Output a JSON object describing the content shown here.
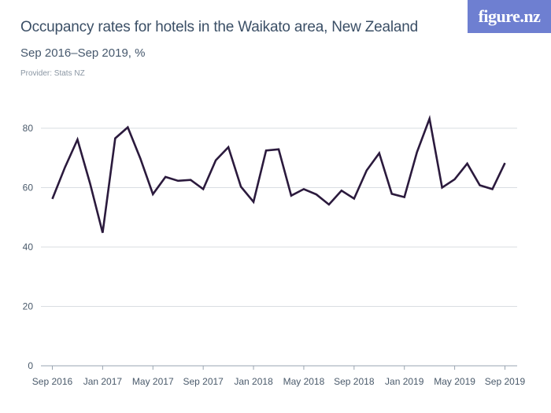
{
  "header": {
    "title": "Occupancy rates for hotels in the Waikato area, New Zealand",
    "subtitle": "Sep 2016–Sep 2019, %",
    "provider": "Provider: Stats NZ",
    "logo_text": "figure.nz"
  },
  "colors": {
    "line": "#2b1a3d",
    "grid": "#d9dde2",
    "logo_bg": "#6e7fd1"
  },
  "chart_data": {
    "type": "line",
    "title": "Occupancy rates for hotels in the Waikato area, New Zealand",
    "subtitle": "Sep 2016–Sep 2019, %",
    "xlabel": "",
    "ylabel": "",
    "ylim": [
      0,
      80
    ],
    "yticks": [
      0,
      20,
      40,
      60,
      80
    ],
    "grid": true,
    "x_tick_labels": [
      "Sep 2016",
      "Jan 2017",
      "May 2017",
      "Sep 2017",
      "Jan 2018",
      "May 2018",
      "Sep 2018",
      "Jan 2019",
      "May 2019",
      "Sep 2019"
    ],
    "x": [
      "Sep 2016",
      "Oct 2016",
      "Nov 2016",
      "Dec 2016",
      "Jan 2017",
      "Feb 2017",
      "Mar 2017",
      "Apr 2017",
      "May 2017",
      "Jun 2017",
      "Jul 2017",
      "Aug 2017",
      "Sep 2017",
      "Oct 2017",
      "Nov 2017",
      "Dec 2017",
      "Jan 2018",
      "Feb 2018",
      "Mar 2018",
      "Apr 2018",
      "May 2018",
      "Jun 2018",
      "Jul 2018",
      "Aug 2018",
      "Sep 2018",
      "Oct 2018",
      "Nov 2018",
      "Dec 2018",
      "Jan 2019",
      "Feb 2019",
      "Mar 2019",
      "Apr 2019",
      "May 2019",
      "Jun 2019",
      "Jul 2019",
      "Aug 2019",
      "Sep 2019"
    ],
    "series": [
      {
        "values": [
          56.2,
          66.8,
          76.2,
          61.4,
          44.8,
          76.6,
          80.3,
          69.8,
          57.8,
          63.6,
          62.3,
          62.6,
          59.5,
          69.2,
          73.6,
          60.3,
          55.2,
          72.5,
          72.9,
          57.3,
          59.5,
          57.7,
          54.3,
          59.0,
          56.3,
          65.8,
          71.6,
          57.9,
          56.8,
          71.9,
          83.2,
          60.0,
          62.8,
          68.1,
          60.8,
          59.5,
          68.3
        ]
      }
    ]
  }
}
